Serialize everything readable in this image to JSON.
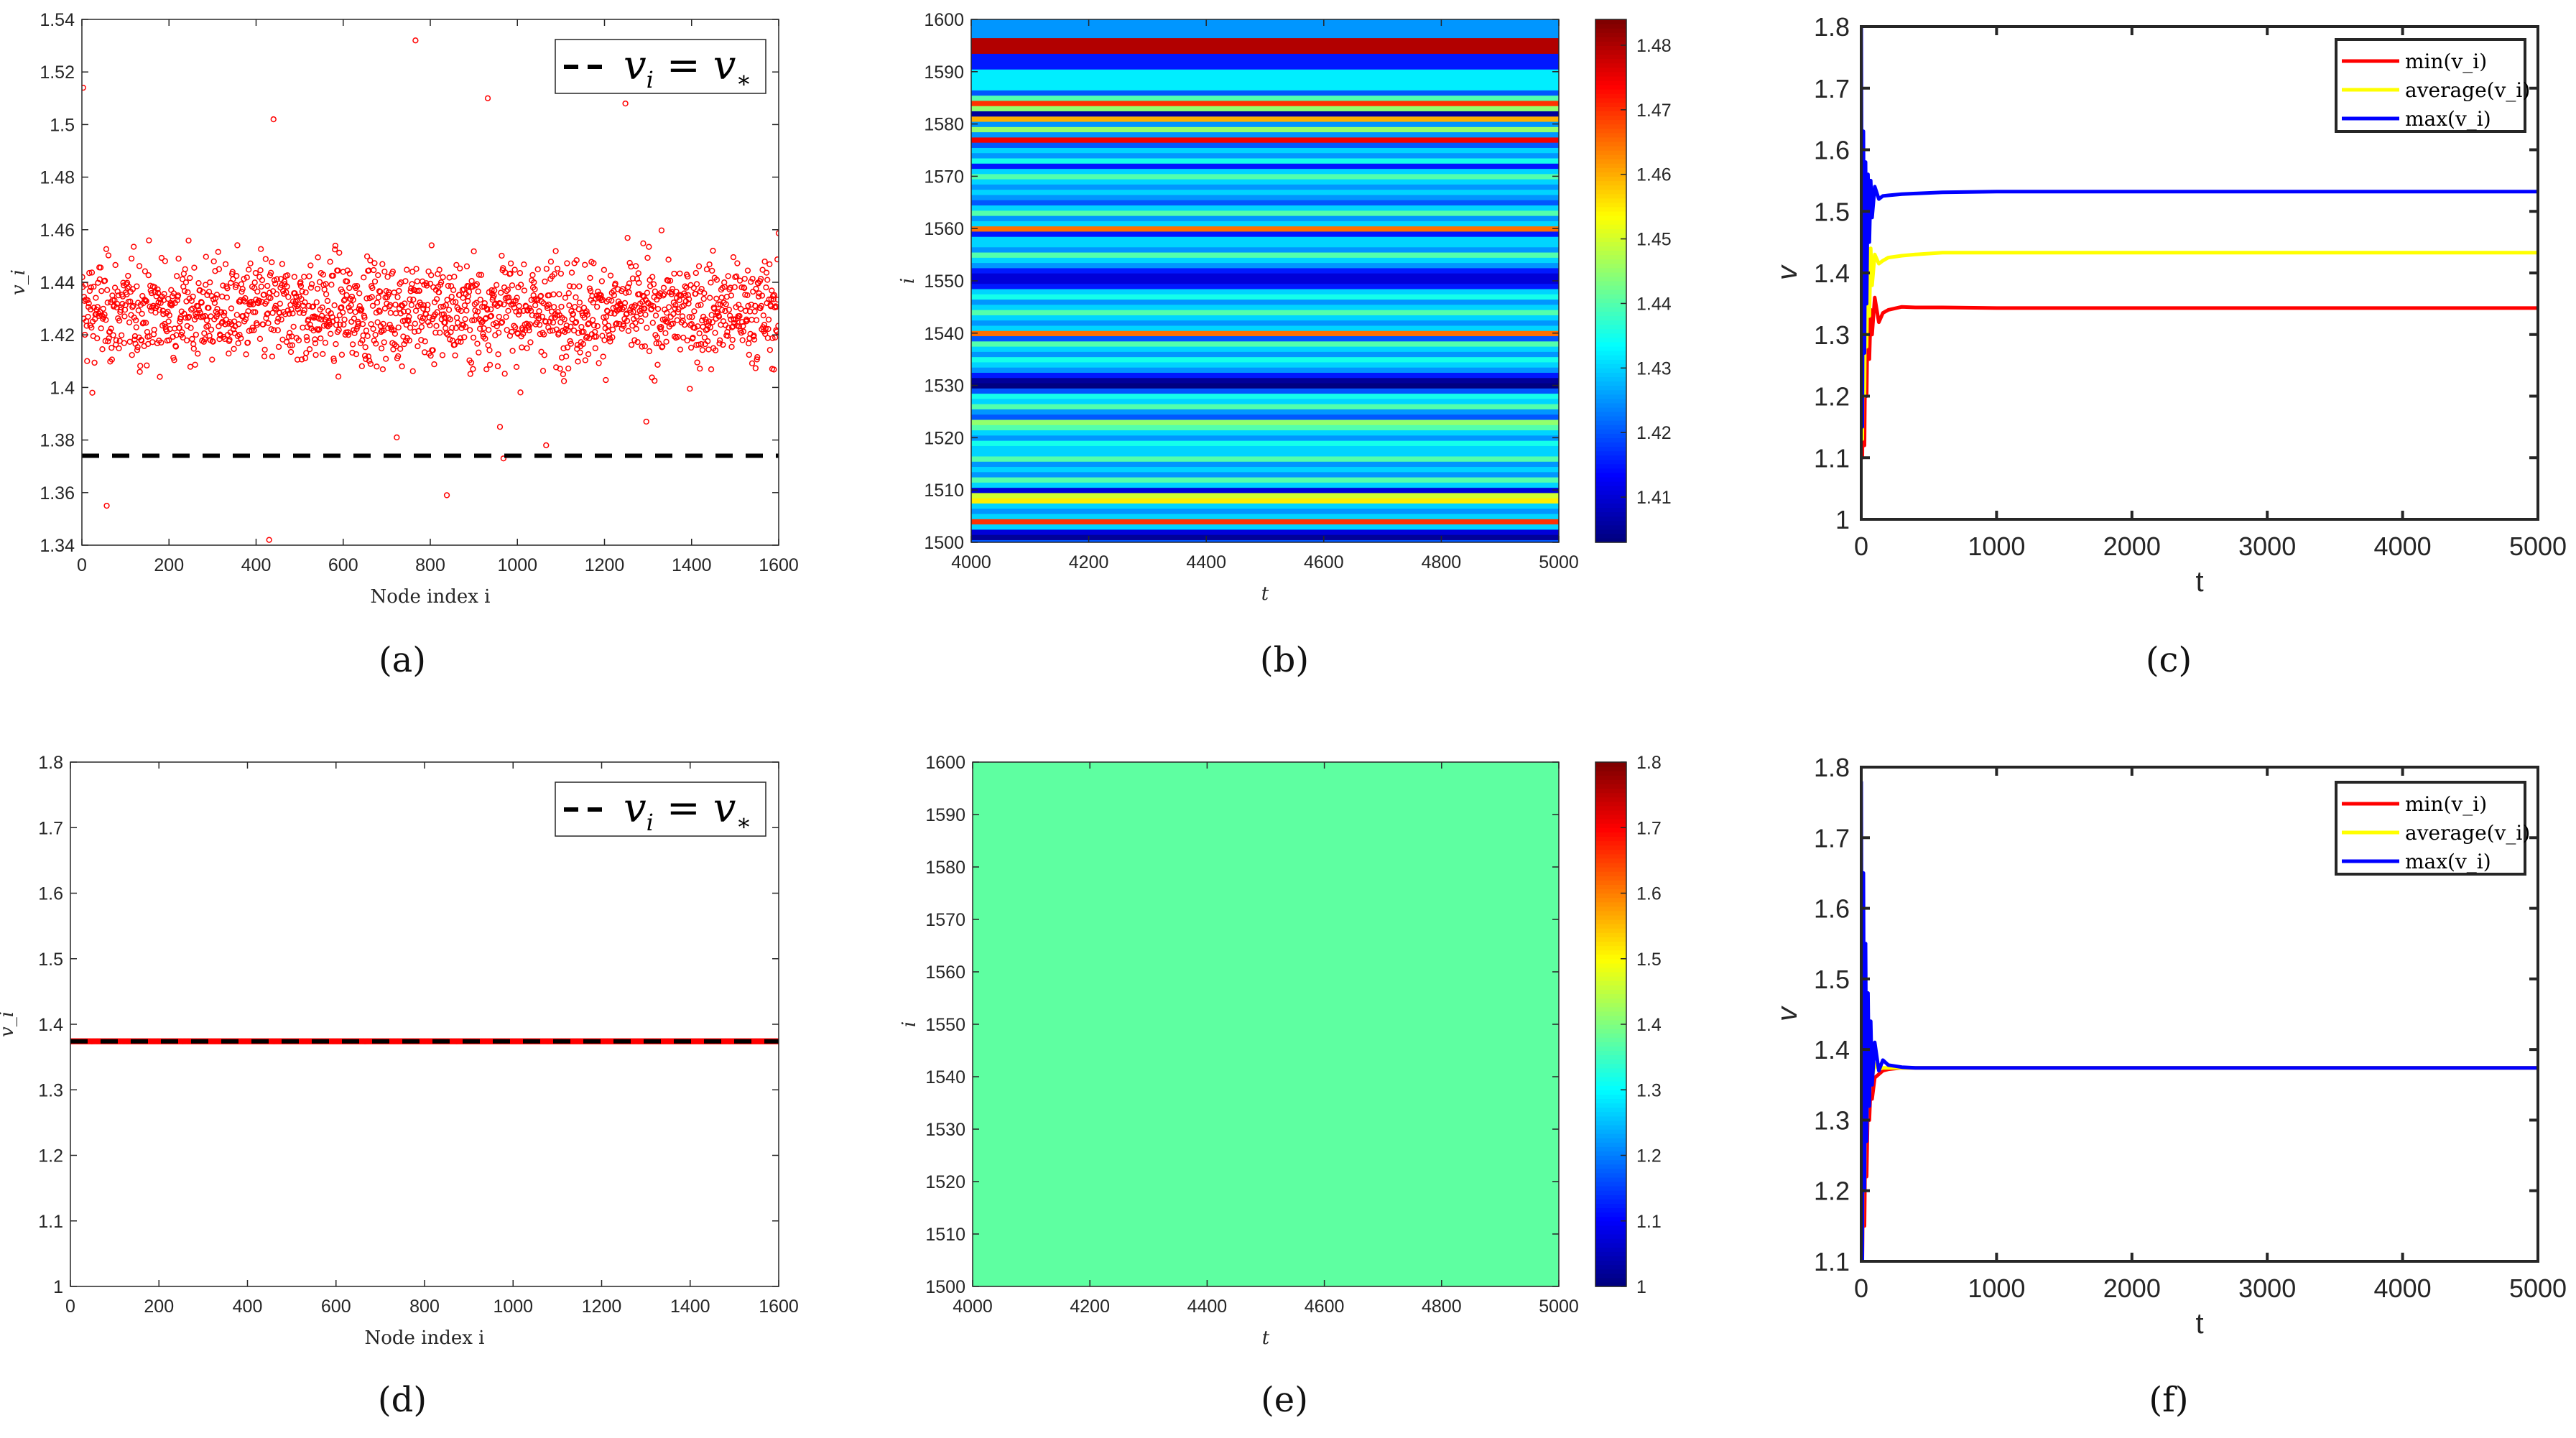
{
  "chart_data": [
    {
      "panel": "a",
      "caption": "(a)",
      "type": "scatter",
      "xlabel": "Node index i",
      "ylabel": "v_i",
      "xlim": [
        0,
        1600
      ],
      "ylim": [
        1.34,
        1.54
      ],
      "xticks": [
        0,
        200,
        400,
        600,
        800,
        1000,
        1200,
        1400,
        1600
      ],
      "yticks": [
        1.34,
        1.36,
        1.38,
        1.4,
        1.42,
        1.44,
        1.46,
        1.48,
        1.5,
        1.52,
        1.54
      ],
      "series": [
        {
          "name": "v_i",
          "color": "#ff0000",
          "n": 1600,
          "mean": 1.429,
          "std": 0.013,
          "outliers": [
            [
              3,
              1.514
            ],
            [
              57,
              1.355
            ],
            [
              24,
              1.398
            ],
            [
              430,
              1.342
            ],
            [
              440,
              1.502
            ],
            [
              766,
              1.532
            ],
            [
              838,
              1.359
            ],
            [
              932,
              1.51
            ],
            [
              960,
              1.385
            ],
            [
              968,
              1.373
            ],
            [
              1066,
              1.378
            ],
            [
              1248,
              1.508
            ],
            [
              1296,
              1.387
            ],
            [
              723,
              1.381
            ]
          ]
        }
      ],
      "reference_line": {
        "name": "v_i = v_*",
        "y": 1.374,
        "color": "#000000",
        "style": "dashed"
      },
      "legend": {
        "lhs": "v",
        "lhs_sub": "i",
        "eq": "=",
        "rhs": "v",
        "rhs_sub": "∗",
        "placement": "top-right"
      }
    },
    {
      "panel": "b",
      "caption": "(b)",
      "type": "heatmap",
      "xlabel": "t",
      "ylabel": "i",
      "xlim": [
        4000,
        5000
      ],
      "ylim": [
        1500,
        1600
      ],
      "xticks": [
        4000,
        4200,
        4400,
        4600,
        4800,
        5000
      ],
      "yticks": [
        1500,
        1510,
        1520,
        1530,
        1540,
        1550,
        1560,
        1570,
        1580,
        1590,
        1600
      ],
      "colormap": "jet",
      "clim": [
        1.403,
        1.484
      ],
      "cticks": [
        1.41,
        1.42,
        1.43,
        1.44,
        1.45,
        1.46,
        1.47,
        1.48
      ],
      "row_start": 1500,
      "row_values": [
        1.42,
        1.405,
        1.41,
        1.43,
        1.47,
        1.43,
        1.425,
        1.43,
        1.455,
        1.45,
        1.41,
        1.43,
        1.44,
        1.425,
        1.43,
        1.425,
        1.44,
        1.43,
        1.43,
        1.435,
        1.425,
        1.43,
        1.44,
        1.445,
        1.42,
        1.425,
        1.44,
        1.43,
        1.435,
        1.42,
        1.403,
        1.405,
        1.415,
        1.425,
        1.43,
        1.435,
        1.425,
        1.43,
        1.44,
        1.42,
        1.465,
        1.43,
        1.425,
        1.43,
        1.44,
        1.43,
        1.425,
        1.435,
        1.43,
        1.415,
        1.41,
        1.41,
        1.415,
        1.425,
        1.43,
        1.44,
        1.425,
        1.43,
        1.43,
        1.415,
        1.465,
        1.43,
        1.425,
        1.44,
        1.43,
        1.42,
        1.425,
        1.43,
        1.425,
        1.43,
        1.44,
        1.43,
        1.415,
        1.435,
        1.425,
        1.43,
        1.42,
        1.475,
        1.425,
        1.445,
        1.425,
        1.46,
        1.405,
        1.445,
        1.47,
        1.44,
        1.42,
        1.432,
        1.432,
        1.432,
        1.432,
        1.415,
        1.415,
        1.415,
        1.48,
        1.48,
        1.48,
        1.425,
        1.425,
        1.425,
        1.425
      ]
    },
    {
      "panel": "c",
      "caption": "(c)",
      "type": "line",
      "xlabel": "t",
      "ylabel": "v",
      "xlim": [
        0,
        5000
      ],
      "ylim": [
        1,
        1.8
      ],
      "xticks": [
        0,
        1000,
        2000,
        3000,
        4000,
        5000
      ],
      "yticks": [
        1,
        1.1,
        1.2,
        1.3,
        1.4,
        1.5,
        1.6,
        1.7,
        1.8
      ],
      "x": [
        0,
        8,
        16,
        24,
        32,
        40,
        50,
        60,
        70,
        80,
        100,
        130,
        160,
        200,
        300,
        400,
        600,
        1000,
        5000
      ],
      "series": [
        {
          "name": "min(v_i)",
          "label": "min",
          "color": "#ff0000",
          "values": [
            1.38,
            1.1,
            1.3,
            1.12,
            1.33,
            1.2,
            1.37,
            1.26,
            1.34,
            1.3,
            1.36,
            1.32,
            1.335,
            1.34,
            1.345,
            1.344,
            1.344,
            1.343,
            1.343
          ]
        },
        {
          "name": "average(v_i)",
          "label": "average",
          "color": "#ffff00",
          "values": [
            1.44,
            1.13,
            1.42,
            1.2,
            1.43,
            1.28,
            1.44,
            1.33,
            1.44,
            1.38,
            1.43,
            1.415,
            1.42,
            1.425,
            1.428,
            1.43,
            1.433,
            1.433,
            1.433
          ]
        },
        {
          "name": "max(v_i)",
          "label": "max",
          "color": "#0000ff",
          "values": [
            1.8,
            1.15,
            1.63,
            1.27,
            1.58,
            1.35,
            1.56,
            1.45,
            1.55,
            1.49,
            1.54,
            1.52,
            1.525,
            1.526,
            1.528,
            1.529,
            1.531,
            1.532,
            1.532
          ]
        }
      ],
      "legend_placement": "top-right"
    },
    {
      "panel": "d",
      "caption": "(d)",
      "type": "scatter",
      "xlabel": "Node index i",
      "ylabel": "v_i",
      "xlim": [
        0,
        1600
      ],
      "ylim": [
        1,
        1.8
      ],
      "xticks": [
        0,
        200,
        400,
        600,
        800,
        1000,
        1200,
        1400,
        1600
      ],
      "yticks": [
        1,
        1.1,
        1.2,
        1.3,
        1.4,
        1.5,
        1.6,
        1.7,
        1.8
      ],
      "series": [
        {
          "name": "v_i",
          "color": "#ff0000",
          "n": 1600,
          "value": 1.374
        }
      ],
      "reference_line": {
        "name": "v_i = v_*",
        "y": 1.374,
        "color": "#000000",
        "style": "dashed"
      },
      "legend": {
        "lhs": "v",
        "lhs_sub": "i",
        "eq": "=",
        "rhs": "v",
        "rhs_sub": "∗",
        "placement": "top-right"
      }
    },
    {
      "panel": "e",
      "caption": "(e)",
      "type": "heatmap",
      "xlabel": "t",
      "ylabel": "i",
      "xlim": [
        4000,
        5000
      ],
      "ylim": [
        1500,
        1600
      ],
      "xticks": [
        4000,
        4200,
        4400,
        4600,
        4800,
        5000
      ],
      "yticks": [
        1500,
        1510,
        1520,
        1530,
        1540,
        1550,
        1560,
        1570,
        1580,
        1590,
        1600
      ],
      "colormap": "jet",
      "clim": [
        1,
        1.8
      ],
      "cticks": [
        1,
        1.1,
        1.2,
        1.3,
        1.4,
        1.5,
        1.6,
        1.7,
        1.8
      ],
      "uniform_value": 1.374
    },
    {
      "panel": "f",
      "caption": "(f)",
      "type": "line",
      "xlabel": "t",
      "ylabel": "v",
      "xlim": [
        0,
        5000
      ],
      "ylim": [
        1.1,
        1.8
      ],
      "xticks": [
        0,
        1000,
        2000,
        3000,
        4000,
        5000
      ],
      "yticks": [
        1.1,
        1.2,
        1.3,
        1.4,
        1.5,
        1.6,
        1.7,
        1.8
      ],
      "x": [
        0,
        8,
        16,
        24,
        32,
        40,
        50,
        60,
        70,
        80,
        100,
        130,
        160,
        200,
        300,
        400,
        600,
        1000,
        5000
      ],
      "series": [
        {
          "name": "min(v_i)",
          "label": "min",
          "color": "#ff0000",
          "values": [
            1.3,
            1.1,
            1.28,
            1.15,
            1.3,
            1.22,
            1.33,
            1.3,
            1.35,
            1.33,
            1.36,
            1.365,
            1.37,
            1.372,
            1.374,
            1.374,
            1.374,
            1.374,
            1.374
          ]
        },
        {
          "name": "average(v_i)",
          "label": "average",
          "color": "#ffff00",
          "values": [
            1.44,
            1.12,
            1.42,
            1.2,
            1.41,
            1.28,
            1.4,
            1.33,
            1.39,
            1.36,
            1.38,
            1.372,
            1.374,
            1.374,
            1.374,
            1.374,
            1.374,
            1.374,
            1.374
          ]
        },
        {
          "name": "max(v_i)",
          "label": "max",
          "color": "#0000ff",
          "values": [
            1.78,
            1.1,
            1.65,
            1.2,
            1.55,
            1.27,
            1.48,
            1.32,
            1.44,
            1.35,
            1.41,
            1.37,
            1.385,
            1.378,
            1.375,
            1.374,
            1.374,
            1.374,
            1.374
          ]
        }
      ],
      "legend_placement": "top-right"
    }
  ]
}
